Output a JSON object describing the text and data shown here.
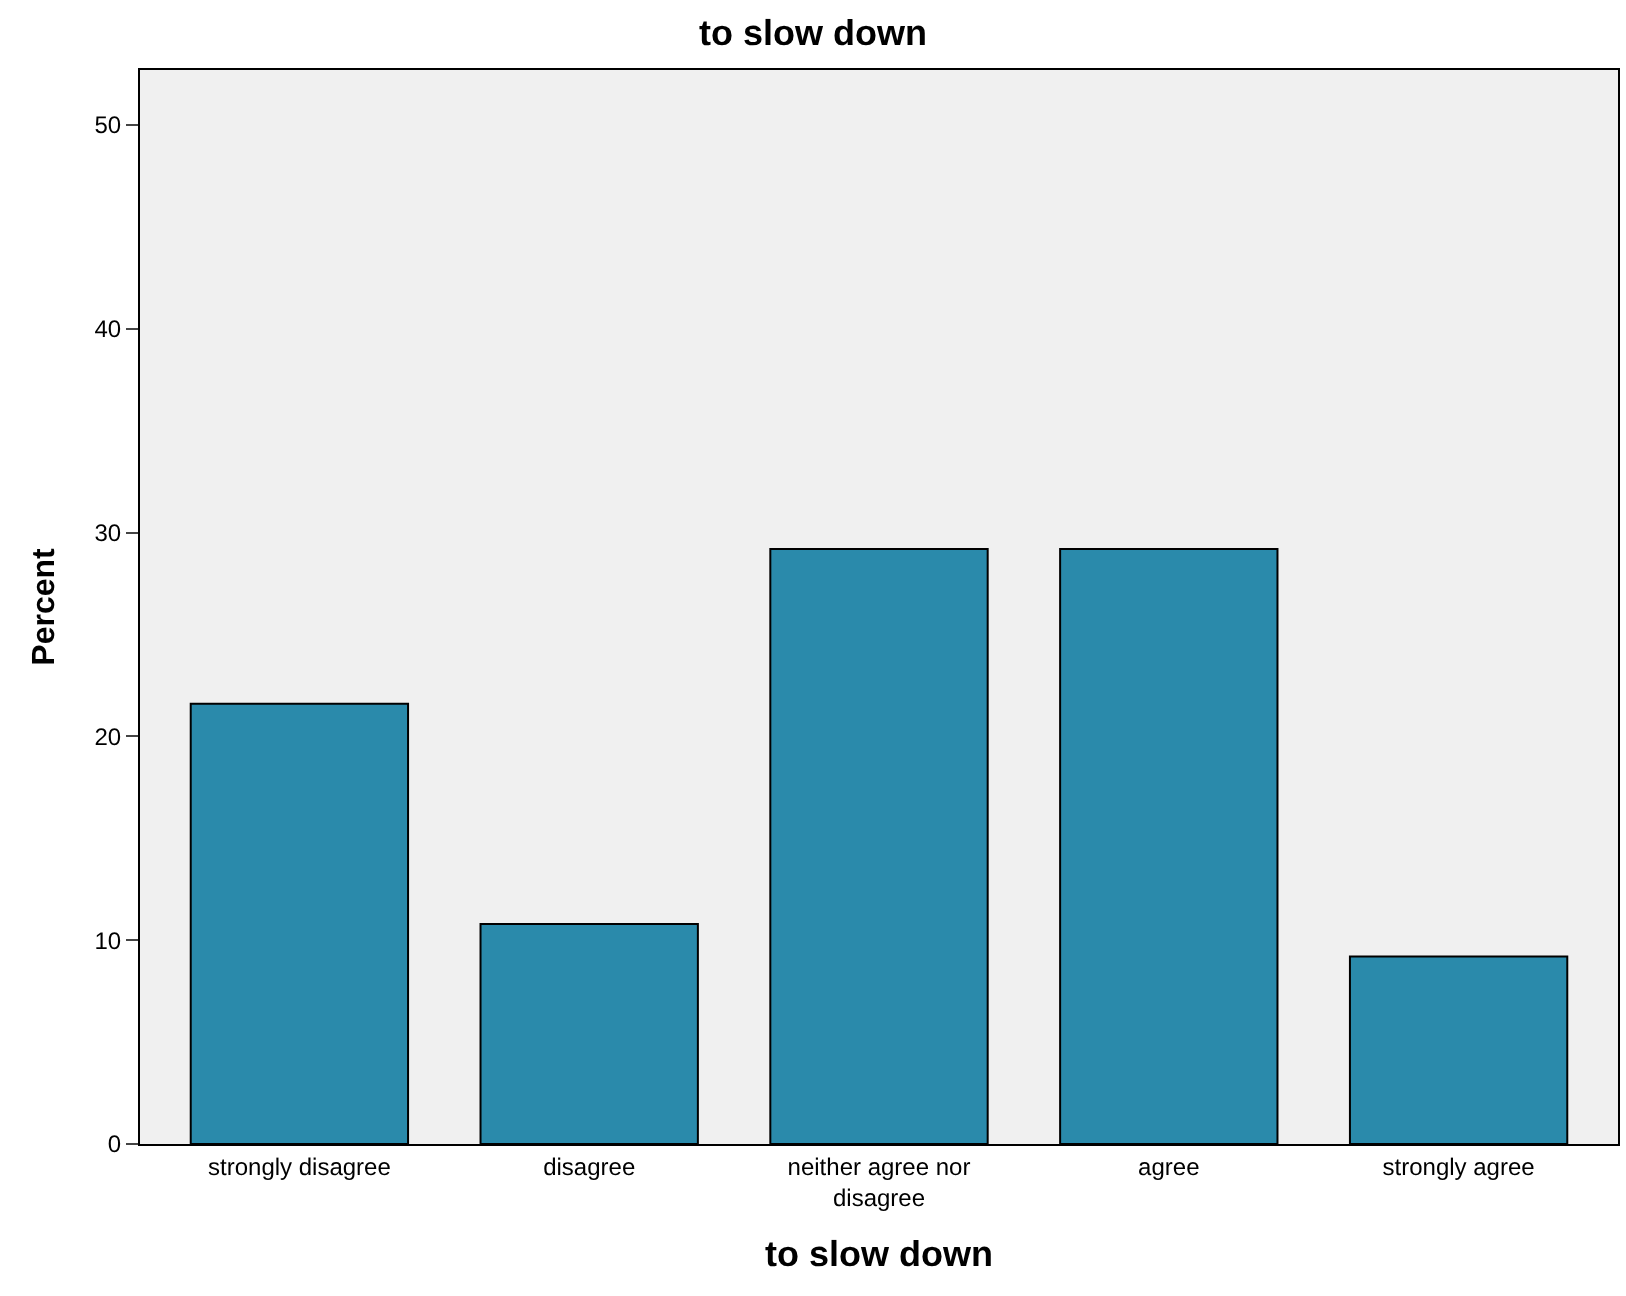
{
  "chart_data": {
    "type": "bar",
    "title": "to slow down",
    "xlabel": "to slow down",
    "ylabel": "Percent",
    "categories": [
      "strongly disagree",
      "disagree",
      "neither agree nor disagree",
      "agree",
      "strongly agree"
    ],
    "values": [
      21.6,
      10.8,
      29.2,
      29.2,
      9.2
    ],
    "color": "#2a8aab",
    "ylim": [
      0,
      52.7
    ],
    "yticks": [
      0,
      10,
      20,
      30,
      40,
      50
    ],
    "grid": false
  }
}
